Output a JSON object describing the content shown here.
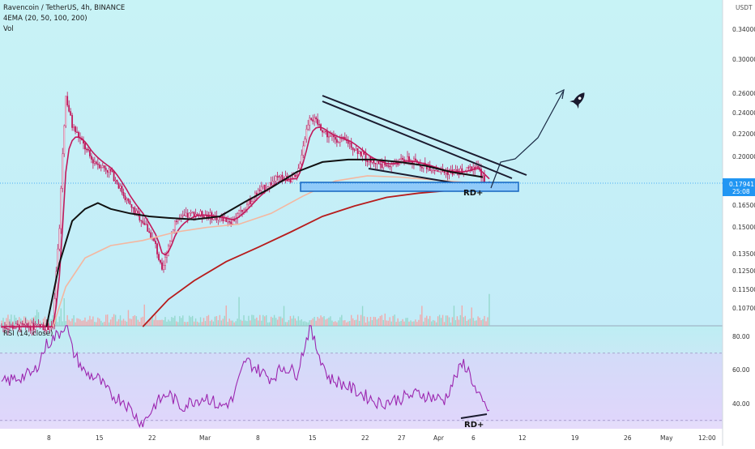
{
  "header": {
    "symbol_line": "Ravencoin / TetherUS, 4h, BINANCE",
    "ema_line": "4EMA (20, 50, 100, 200)",
    "vol_line": "Vol"
  },
  "rsi_header": "RSI (14, close)",
  "price_axis": {
    "unit_label": "USDT",
    "ticks": [
      "0.34000",
      "0.30000",
      "0.26000",
      "0.24000",
      "0.22000",
      "0.20000",
      "0.16500",
      "0.15000",
      "0.13500",
      "0.12500",
      "0.11500",
      "0.10700"
    ]
  },
  "current_price": {
    "value": "0.17941",
    "countdown": "25:08",
    "color": "#2196f3"
  },
  "rsi_axis": {
    "ticks": [
      "80.00",
      "60.00",
      "40.00"
    ]
  },
  "time_axis": {
    "ticks": [
      "8",
      "15",
      "22",
      "Mar",
      "8",
      "15",
      "22",
      "27",
      "Apr",
      "6",
      "12",
      "19",
      "26",
      "May",
      "12:00"
    ]
  },
  "annotations": {
    "divergence_price": "RD+",
    "divergence_rsi": "RD+"
  },
  "colors": {
    "ema20": "#c2185b",
    "ema50": "#111111",
    "ema100": "#f4b7a0",
    "ema200": "#b71c1c",
    "up_candle": "#c2185b",
    "down_candle": "#c2185b",
    "rsi_line": "#9c27b0",
    "rsi_band": "#d1c4e9",
    "support_box": "#90caf9"
  },
  "chart_data": {
    "type": "candlestick",
    "title": "Ravencoin / TetherUS, 4h, BINANCE",
    "indicators": [
      "4EMA (20, 50, 100, 200)",
      "Vol",
      "RSI (14, close)"
    ],
    "yscale": "log",
    "ylim": [
      0.1,
      0.36
    ],
    "x_ticks": [
      "8",
      "15",
      "22",
      "Mar",
      "8",
      "15",
      "22",
      "27",
      "Apr",
      "6",
      "12",
      "19",
      "26",
      "May",
      "12:00"
    ],
    "close_path": [
      [
        0,
        0.1
      ],
      [
        8,
        0.1
      ],
      [
        9,
        0.15
      ],
      [
        10,
        0.26
      ],
      [
        11,
        0.23
      ],
      [
        12,
        0.22
      ],
      [
        14,
        0.2
      ],
      [
        17,
        0.19
      ],
      [
        20,
        0.165
      ],
      [
        22,
        0.155
      ],
      [
        24,
        0.14
      ],
      [
        25,
        0.125
      ],
      [
        27,
        0.155
      ],
      [
        30,
        0.16
      ],
      [
        33,
        0.158
      ],
      [
        36,
        0.155
      ],
      [
        38,
        0.165
      ],
      [
        40,
        0.175
      ],
      [
        43,
        0.185
      ],
      [
        46,
        0.185
      ],
      [
        48,
        0.24
      ],
      [
        51,
        0.22
      ],
      [
        54,
        0.215
      ],
      [
        57,
        0.2
      ],
      [
        60,
        0.195
      ],
      [
        63,
        0.2
      ],
      [
        66,
        0.195
      ],
      [
        69,
        0.19
      ],
      [
        72,
        0.19
      ],
      [
        74,
        0.195
      ],
      [
        75,
        0.185
      ],
      [
        76,
        0.18
      ]
    ],
    "current_price": 0.17941,
    "ema_lines": {
      "ema50": [
        [
          7,
          0.1
        ],
        [
          9,
          0.13
        ],
        [
          11,
          0.155
        ],
        [
          13,
          0.163
        ],
        [
          15,
          0.167
        ],
        [
          17,
          0.163
        ],
        [
          20,
          0.16
        ],
        [
          23,
          0.158
        ],
        [
          26,
          0.157
        ],
        [
          30,
          0.156
        ],
        [
          34,
          0.158
        ],
        [
          38,
          0.168
        ],
        [
          42,
          0.178
        ],
        [
          46,
          0.19
        ],
        [
          50,
          0.198
        ],
        [
          54,
          0.2
        ],
        [
          58,
          0.2
        ],
        [
          62,
          0.198
        ],
        [
          66,
          0.195
        ],
        [
          70,
          0.19
        ],
        [
          75,
          0.186
        ]
      ],
      "ema100": [
        [
          8,
          0.1
        ],
        [
          10,
          0.118
        ],
        [
          13,
          0.133
        ],
        [
          17,
          0.14
        ],
        [
          22,
          0.143
        ],
        [
          27,
          0.148
        ],
        [
          32,
          0.151
        ],
        [
          37,
          0.153
        ],
        [
          42,
          0.16
        ],
        [
          47,
          0.172
        ],
        [
          52,
          0.183
        ],
        [
          57,
          0.187
        ],
        [
          62,
          0.186
        ],
        [
          67,
          0.184
        ],
        [
          72,
          0.182
        ],
        [
          75,
          0.181
        ]
      ],
      "ema200": [
        [
          22,
          0.1
        ],
        [
          26,
          0.112
        ],
        [
          30,
          0.121
        ],
        [
          35,
          0.131
        ],
        [
          40,
          0.139
        ],
        [
          45,
          0.148
        ],
        [
          50,
          0.158
        ],
        [
          55,
          0.165
        ],
        [
          60,
          0.171
        ],
        [
          65,
          0.174
        ],
        [
          70,
          0.176
        ],
        [
          75,
          0.178
        ]
      ]
    },
    "rsi": {
      "ylim": [
        25,
        90
      ],
      "levels": [
        70,
        30
      ],
      "values": [
        [
          0,
          52
        ],
        [
          3,
          56
        ],
        [
          5,
          58
        ],
        [
          7,
          75
        ],
        [
          9,
          82
        ],
        [
          10,
          88
        ],
        [
          11,
          72
        ],
        [
          13,
          58
        ],
        [
          15,
          55
        ],
        [
          17,
          45
        ],
        [
          19,
          42
        ],
        [
          21,
          32
        ],
        [
          22,
          28
        ],
        [
          24,
          40
        ],
        [
          26,
          46
        ],
        [
          28,
          38
        ],
        [
          30,
          42
        ],
        [
          32,
          44
        ],
        [
          34,
          38
        ],
        [
          36,
          42
        ],
        [
          38,
          66
        ],
        [
          40,
          60
        ],
        [
          42,
          55
        ],
        [
          44,
          62
        ],
        [
          46,
          58
        ],
        [
          48,
          85
        ],
        [
          49,
          74
        ],
        [
          51,
          55
        ],
        [
          53,
          52
        ],
        [
          55,
          48
        ],
        [
          57,
          44
        ],
        [
          59,
          40
        ],
        [
          61,
          42
        ],
        [
          63,
          44
        ],
        [
          65,
          46
        ],
        [
          67,
          44
        ],
        [
          69,
          42
        ],
        [
          71,
          58
        ],
        [
          72,
          64
        ],
        [
          73,
          58
        ],
        [
          74,
          46
        ],
        [
          75,
          40
        ],
        [
          76,
          36
        ]
      ]
    }
  }
}
